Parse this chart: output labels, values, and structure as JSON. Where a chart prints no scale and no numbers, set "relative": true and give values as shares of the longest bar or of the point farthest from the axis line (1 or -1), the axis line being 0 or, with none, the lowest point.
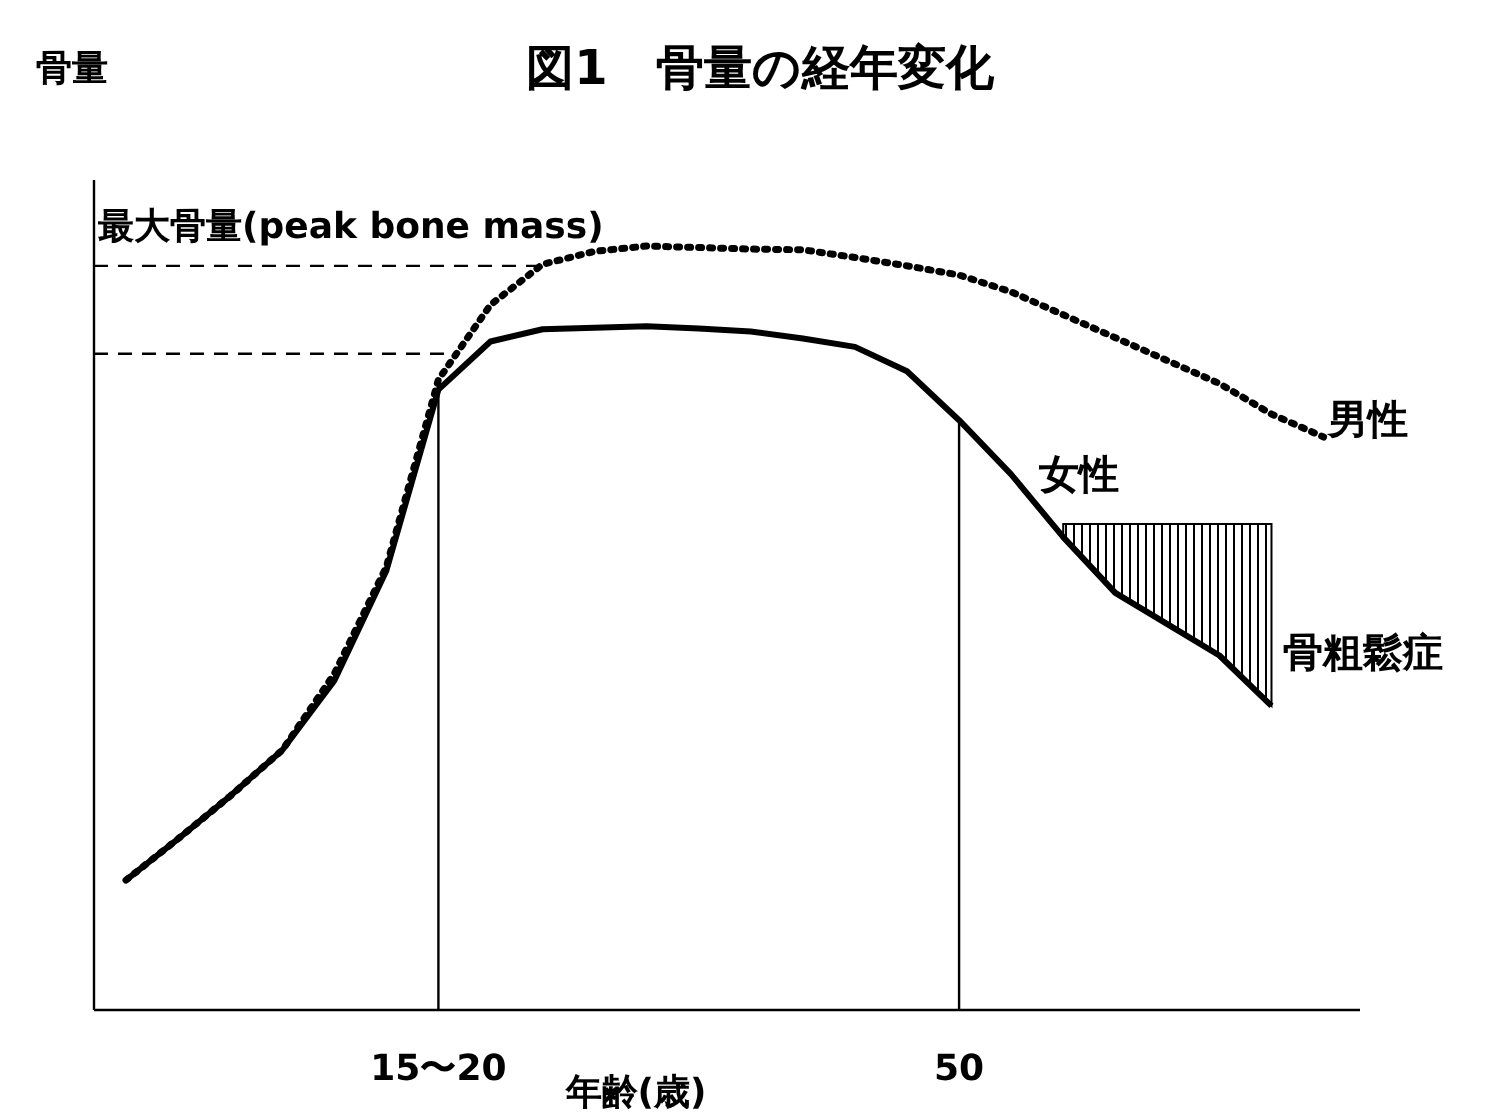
{
  "chart_data": {
    "type": "line",
    "title": "図1　骨量の経年変化",
    "xlabel": "年齢(歳)",
    "ylabel": "骨量",
    "relative": true,
    "categories": [
      null,
      null,
      null,
      null,
      null,
      null,
      "15〜20",
      null,
      null,
      null,
      null,
      null,
      null,
      null,
      null,
      null,
      "50",
      null,
      null,
      null,
      null,
      null,
      null,
      null
    ],
    "series": [
      {
        "name": "女性",
        "color": "#000000",
        "line_style": "solid",
        "values": [
          0.17,
          0.224,
          0.28,
          0.34,
          0.431,
          0.575,
          0.812,
          0.875,
          0.891,
          0.893,
          0.895,
          0.892,
          0.888,
          0.879,
          0.868,
          0.836,
          0.772,
          0.701,
          0.619,
          0.546,
          0.505,
          0.464,
          0.398,
          null
        ],
        "lower": [
          null,
          null,
          null,
          null,
          null,
          null,
          null,
          null,
          null,
          null,
          null,
          null,
          null,
          null,
          null,
          null,
          null,
          null,
          0.619,
          0.546,
          0.505,
          0.464,
          0.398,
          null
        ],
        "upper": [
          null,
          null,
          null,
          null,
          null,
          null,
          null,
          null,
          null,
          null,
          null,
          null,
          null,
          null,
          null,
          null,
          null,
          null,
          0.636,
          0.636,
          0.636,
          0.636,
          0.636,
          null
        ]
      },
      {
        "name": "男性",
        "color": "#000000",
        "line_style": "dotted",
        "values": [
          0.17,
          0.224,
          0.28,
          0.34,
          0.44,
          0.58,
          0.825,
          0.923,
          0.976,
          0.993,
          1.0,
          0.998,
          0.996,
          0.995,
          0.985,
          0.974,
          0.962,
          0.94,
          0.91,
          0.88,
          0.85,
          0.82,
          0.78,
          0.75
        ]
      }
    ],
    "ref_lines": [
      {
        "axis": "y",
        "value": 0.974,
        "label": "最大骨量(peak bone mass)",
        "line_style": "dashed"
      },
      {
        "axis": "y",
        "value": 0.859,
        "line_style": "dashed"
      },
      {
        "axis": "x",
        "value": "15〜20",
        "line_style": "solid"
      },
      {
        "axis": "x",
        "value": "50",
        "line_style": "solid"
      }
    ],
    "annotations": [
      "骨粗鬆症"
    ]
  }
}
